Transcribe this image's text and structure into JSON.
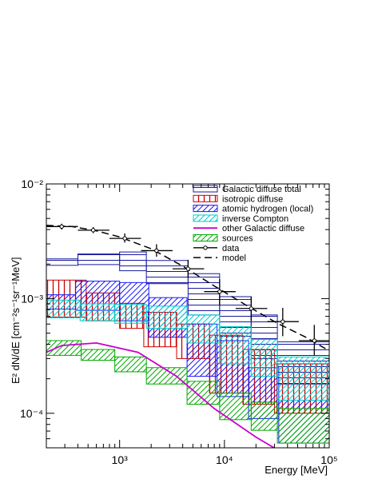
{
  "chart_data": {
    "type": "line",
    "xlabel": "Energy [MeV]",
    "ylabel": "E² dN/dE [cm⁻²s⁻¹sr⁻¹MeV]",
    "xlim": [
      200,
      100000
    ],
    "ylim": [
      5e-05,
      0.01
    ],
    "xscale": "log",
    "yscale": "log",
    "grid": false,
    "legend_position": "top-right",
    "x_tick_labels": [
      "10³",
      "10⁴",
      "10⁵"
    ],
    "y_tick_labels": [
      "10⁻²",
      "10⁻³",
      "10⁻⁴"
    ],
    "series": [
      {
        "name": "Galactic diffuse total",
        "style": "band",
        "color": "#1a1a9e",
        "hatch": "horizontal",
        "bins": [
          {
            "x0": 200,
            "x1": 400,
            "lo": 0.00195,
            "hi": 0.00222
          },
          {
            "x0": 400,
            "x1": 1000,
            "lo": 0.00198,
            "hi": 0.00245
          },
          {
            "x0": 1000,
            "x1": 1800,
            "lo": 0.00175,
            "hi": 0.00255
          },
          {
            "x0": 1800,
            "x1": 4500,
            "lo": 0.00135,
            "hi": 0.00215
          },
          {
            "x0": 4500,
            "x1": 9000,
            "lo": 0.00072,
            "hi": 0.00165
          },
          {
            "x0": 9000,
            "x1": 18000,
            "lo": 0.00047,
            "hi": 0.00104
          },
          {
            "x0": 18000,
            "x1": 32000,
            "lo": 0.0003,
            "hi": 0.00072
          },
          {
            "x0": 32000,
            "x1": 100000,
            "lo": 0.00018,
            "hi": 0.00042
          }
        ]
      },
      {
        "name": "isotropic diffuse",
        "style": "band",
        "color": "#cc0000",
        "hatch": "vertical",
        "bins": [
          {
            "x0": 200,
            "x1": 480,
            "lo": 0.00069,
            "hi": 0.00145
          },
          {
            "x0": 480,
            "x1": 1000,
            "lo": 0.00064,
            "hi": 0.00112
          },
          {
            "x0": 1000,
            "x1": 1700,
            "lo": 0.00055,
            "hi": 0.00091
          },
          {
            "x0": 1700,
            "x1": 3500,
            "lo": 0.00038,
            "hi": 0.00076
          },
          {
            "x0": 3500,
            "x1": 7200,
            "lo": 0.0003,
            "hi": 0.0006
          },
          {
            "x0": 7200,
            "x1": 15000,
            "lo": 0.00015,
            "hi": 0.00048
          },
          {
            "x0": 15000,
            "x1": 30000,
            "lo": 0.00012,
            "hi": 0.00036
          },
          {
            "x0": 30000,
            "x1": 100000,
            "lo": 0.0001,
            "hi": 0.00027
          }
        ]
      },
      {
        "name": "atomic hydrogen (local)",
        "style": "band",
        "color": "#1a1aff",
        "hatch": "diagonal",
        "bins": [
          {
            "x0": 200,
            "x1": 380,
            "lo": 0.00081,
            "hi": 0.00108
          },
          {
            "x0": 380,
            "x1": 1000,
            "lo": 0.00079,
            "hi": 0.00142
          },
          {
            "x0": 1000,
            "x1": 1900,
            "lo": 0.00064,
            "hi": 0.00138
          },
          {
            "x0": 1900,
            "x1": 4400,
            "lo": 0.00046,
            "hi": 0.00102
          },
          {
            "x0": 4400,
            "x1": 8500,
            "lo": 0.00021,
            "hi": 0.0006
          },
          {
            "x0": 8500,
            "x1": 17000,
            "lo": 0.00014,
            "hi": 0.00043
          },
          {
            "x0": 17000,
            "x1": 33000,
            "lo": 9e-05,
            "hi": 0.00025
          },
          {
            "x0": 33000,
            "x1": 100000,
            "lo": 5.5e-05,
            "hi": 0.00013
          }
        ]
      },
      {
        "name": "inverse Compton",
        "style": "band",
        "color": "#00cccc",
        "hatch": "diagonal",
        "bins": [
          {
            "x0": 200,
            "x1": 420,
            "lo": 0.00068,
            "hi": 0.00097
          },
          {
            "x0": 420,
            "x1": 900,
            "lo": 0.00064,
            "hi": 0.0009
          },
          {
            "x0": 900,
            "x1": 1800,
            "lo": 0.00061,
            "hi": 0.00089
          },
          {
            "x0": 1800,
            "x1": 4400,
            "lo": 0.00055,
            "hi": 0.00086
          },
          {
            "x0": 4400,
            "x1": 9000,
            "lo": 0.00041,
            "hi": 0.00072
          },
          {
            "x0": 9000,
            "x1": 18000,
            "lo": 0.00027,
            "hi": 0.00057
          },
          {
            "x0": 18000,
            "x1": 32000,
            "lo": 0.00021,
            "hi": 0.00044
          },
          {
            "x0": 32000,
            "x1": 100000,
            "lo": 0.00013,
            "hi": 0.00031
          }
        ]
      },
      {
        "name": "other Galactic diffuse",
        "style": "line",
        "color": "#cc00cc",
        "points": [
          {
            "x": 200,
            "y": 0.00034
          },
          {
            "x": 280,
            "y": 0.00039
          },
          {
            "x": 600,
            "y": 0.00041
          },
          {
            "x": 1500,
            "y": 0.00034
          },
          {
            "x": 3500,
            "y": 0.00021
          },
          {
            "x": 8000,
            "y": 0.00011
          },
          {
            "x": 20000,
            "y": 6.2e-05
          },
          {
            "x": 45000,
            "y": 4e-05
          }
        ]
      },
      {
        "name": "sources",
        "style": "band",
        "color": "#00aa00",
        "hatch": "diagonal",
        "bins": [
          {
            "x0": 200,
            "x1": 430,
            "lo": 0.00032,
            "hi": 0.00043
          },
          {
            "x0": 430,
            "x1": 900,
            "lo": 0.00029,
            "hi": 0.00036
          },
          {
            "x0": 900,
            "x1": 1800,
            "lo": 0.00023,
            "hi": 0.00031
          },
          {
            "x0": 1800,
            "x1": 4400,
            "lo": 0.00018,
            "hi": 0.00025
          },
          {
            "x0": 4400,
            "x1": 9000,
            "lo": 0.00012,
            "hi": 0.00019
          },
          {
            "x0": 9000,
            "x1": 18000,
            "lo": 8.8e-05,
            "hi": 0.00015
          },
          {
            "x0": 18000,
            "x1": 32000,
            "lo": 7.1e-05,
            "hi": 0.000125
          },
          {
            "x0": 32000,
            "x1": 100000,
            "lo": 5.5e-05,
            "hi": 0.00011
          }
        ]
      },
      {
        "name": "data",
        "style": "points",
        "color": "#000000",
        "points": [
          {
            "x": 280,
            "y": 0.00425,
            "xlo": 200,
            "xhi": 400,
            "ylo": 0.004,
            "yhi": 0.0045
          },
          {
            "x": 560,
            "y": 0.00395,
            "xlo": 400,
            "xhi": 800,
            "ylo": 0.00372,
            "yhi": 0.0042
          },
          {
            "x": 1120,
            "y": 0.00335,
            "xlo": 800,
            "xhi": 1600,
            "ylo": 0.00308,
            "yhi": 0.0037
          },
          {
            "x": 2250,
            "y": 0.00262,
            "xlo": 1600,
            "xhi": 3200,
            "ylo": 0.00232,
            "yhi": 0.00298
          },
          {
            "x": 4500,
            "y": 0.00182,
            "xlo": 3200,
            "xhi": 6400,
            "ylo": 0.00152,
            "yhi": 0.00218
          },
          {
            "x": 9000,
            "y": 0.00115,
            "xlo": 6400,
            "xhi": 12800,
            "ylo": 0.00088,
            "yhi": 0.00148
          },
          {
            "x": 18000,
            "y": 0.00082,
            "xlo": 12800,
            "xhi": 25600,
            "ylo": 0.00064,
            "yhi": 0.00104
          },
          {
            "x": 36000,
            "y": 0.00063,
            "xlo": 25600,
            "xhi": 51200,
            "ylo": 0.00047,
            "yhi": 0.00083
          },
          {
            "x": 72000,
            "y": 0.00043,
            "xlo": 51200,
            "xhi": 100000,
            "ylo": 0.00032,
            "yhi": 0.00059
          }
        ]
      },
      {
        "name": "model",
        "style": "dashed-line",
        "color": "#000000",
        "points": [
          {
            "x": 200,
            "y": 0.00435
          },
          {
            "x": 350,
            "y": 0.00425
          },
          {
            "x": 600,
            "y": 0.0039
          },
          {
            "x": 1000,
            "y": 0.00345
          },
          {
            "x": 2000,
            "y": 0.00272
          },
          {
            "x": 4000,
            "y": 0.00192
          },
          {
            "x": 8000,
            "y": 0.00129
          },
          {
            "x": 16000,
            "y": 0.00088
          },
          {
            "x": 32000,
            "y": 0.00061
          },
          {
            "x": 60000,
            "y": 0.00046
          },
          {
            "x": 100000,
            "y": 0.00035
          }
        ]
      }
    ]
  }
}
